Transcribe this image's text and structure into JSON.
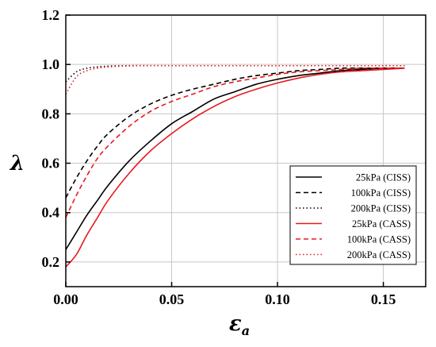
{
  "chart_data": {
    "type": "line",
    "title": "",
    "xlabel": "ε",
    "xlabel_subscript": "a",
    "ylabel": "λ",
    "xlim": [
      0,
      0.17
    ],
    "ylim": [
      0.1,
      1.2
    ],
    "x_ticks": [
      0.0,
      0.05,
      0.1,
      0.15
    ],
    "x_tick_labels": [
      "0.00",
      "0.05",
      "0.10",
      "0.15"
    ],
    "y_ticks": [
      0.2,
      0.4,
      0.6,
      0.8,
      1.0,
      1.2
    ],
    "y_tick_labels": [
      "0.2",
      "0.4",
      "0.6",
      "0.8",
      "1.0",
      "1.2"
    ],
    "grid": true,
    "legend_position": "bottom-right",
    "x": [
      0,
      0.005,
      0.01,
      0.015,
      0.02,
      0.03,
      0.04,
      0.05,
      0.06,
      0.07,
      0.08,
      0.09,
      0.1,
      0.11,
      0.12,
      0.13,
      0.14,
      0.15,
      0.16
    ],
    "series": [
      {
        "name": "25kPa (CISS)",
        "color": "#000000",
        "dash": "solid",
        "values": [
          0.25,
          0.32,
          0.39,
          0.45,
          0.51,
          0.61,
          0.69,
          0.76,
          0.81,
          0.86,
          0.89,
          0.92,
          0.94,
          0.955,
          0.965,
          0.975,
          0.98,
          0.985,
          0.985
        ]
      },
      {
        "name": "100kPa (CISS)",
        "color": "#000000",
        "dash": "dashed",
        "values": [
          0.46,
          0.54,
          0.61,
          0.67,
          0.72,
          0.79,
          0.84,
          0.875,
          0.9,
          0.92,
          0.94,
          0.955,
          0.965,
          0.975,
          0.98,
          0.985,
          0.985,
          0.985,
          0.985
        ]
      },
      {
        "name": "200kPa (CISS)",
        "color": "#000000",
        "dash": "dotted",
        "values": [
          0.93,
          0.97,
          0.985,
          0.99,
          0.993,
          0.995,
          0.995,
          0.995,
          0.995,
          0.995,
          0.995,
          0.995,
          0.995,
          0.995,
          0.995,
          0.995,
          0.995,
          0.995,
          0.995
        ]
      },
      {
        "name": "25kPa (CASS)",
        "color": "#e8191e",
        "dash": "solid",
        "values": [
          0.18,
          0.23,
          0.31,
          0.38,
          0.45,
          0.56,
          0.65,
          0.72,
          0.78,
          0.83,
          0.87,
          0.9,
          0.925,
          0.945,
          0.96,
          0.97,
          0.975,
          0.98,
          0.985
        ]
      },
      {
        "name": "100kPa (CASS)",
        "color": "#e8191e",
        "dash": "dashed",
        "values": [
          0.38,
          0.47,
          0.55,
          0.62,
          0.67,
          0.75,
          0.81,
          0.85,
          0.88,
          0.91,
          0.93,
          0.945,
          0.96,
          0.97,
          0.975,
          0.98,
          0.985,
          0.985,
          0.985
        ]
      },
      {
        "name": "200kPa (CASS)",
        "color": "#e8191e",
        "dash": "dotted",
        "values": [
          0.88,
          0.95,
          0.975,
          0.985,
          0.99,
          0.994,
          0.995,
          0.995,
          0.995,
          0.995,
          0.995,
          0.995,
          0.995,
          0.995,
          0.995,
          0.995,
          0.995,
          0.995,
          0.995
        ]
      }
    ]
  }
}
